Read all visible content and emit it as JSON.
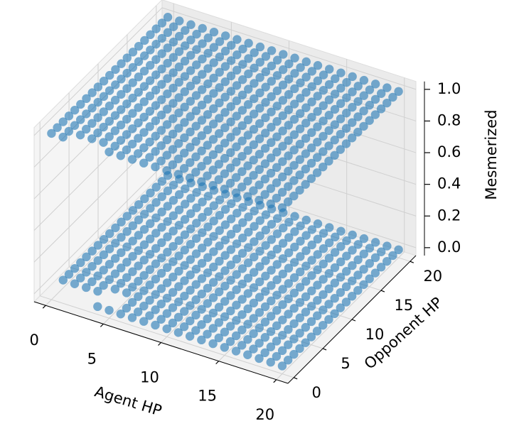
{
  "chart_data": {
    "type": "scatter3d",
    "xlabel": "Agent HP",
    "ylabel": "Opponent HP",
    "zlabel": "Mesmerized",
    "xlim": [
      -1,
      21
    ],
    "ylim": [
      -1,
      21
    ],
    "zlim": [
      -0.05,
      1.05
    ],
    "xticks": [
      0,
      5,
      10,
      15,
      20
    ],
    "yticks": [
      0,
      5,
      10,
      15,
      20
    ],
    "zticks": [
      {
        "value": 0,
        "label": "0.0"
      },
      0.2,
      0.4,
      0.6,
      0.8,
      {
        "value": 1,
        "label": "1.0"
      }
    ],
    "grid": true,
    "color": "#1f77b4",
    "x": [
      0,
      1,
      2,
      3,
      4,
      5,
      6,
      7,
      8,
      9,
      10,
      11,
      12,
      13,
      14,
      15,
      16,
      17,
      18,
      19,
      20
    ],
    "y": [
      0,
      1,
      2,
      3,
      4,
      5,
      6,
      7,
      8,
      9,
      10,
      11,
      12,
      13,
      14,
      15,
      16,
      17,
      18,
      19,
      20
    ],
    "layers": [
      {
        "z": [
          [
            null,
            null,
            null,
            null,
            0,
            0,
            0,
            0,
            0,
            0,
            0,
            0,
            0,
            0,
            0,
            0,
            0,
            0,
            0,
            0,
            0
          ],
          [
            null,
            null,
            null,
            null,
            null,
            null,
            0,
            0,
            0,
            0,
            0,
            0,
            0,
            0,
            0,
            0,
            0,
            0,
            0,
            0,
            0
          ],
          [
            0,
            0,
            0,
            0,
            null,
            null,
            0,
            0,
            0,
            0,
            0,
            0,
            0,
            0,
            0,
            0,
            0,
            0,
            0,
            0,
            0
          ],
          [
            0,
            0,
            0,
            0,
            0,
            0,
            0,
            0,
            0,
            0,
            0,
            0,
            0,
            0,
            0,
            0,
            0,
            0,
            0,
            0,
            0
          ],
          [
            0,
            0,
            0,
            0,
            0,
            0,
            0,
            0,
            0,
            0,
            0,
            0,
            0,
            0,
            0,
            0,
            0,
            0,
            0,
            0,
            0
          ],
          [
            0,
            0,
            0,
            0,
            0,
            0,
            0,
            0,
            0,
            0,
            0,
            0,
            0,
            0,
            0,
            0,
            0,
            0,
            0,
            0,
            0
          ],
          [
            0,
            0,
            0,
            0,
            0,
            0,
            0,
            0,
            0,
            0,
            0,
            0,
            0,
            0,
            0,
            0,
            0,
            0,
            0,
            0,
            0
          ],
          [
            0,
            0,
            0,
            0,
            0,
            0,
            0,
            0,
            0,
            0,
            0,
            0,
            0,
            0,
            0,
            0,
            0,
            0,
            0,
            0,
            0
          ],
          [
            0,
            0,
            0,
            0,
            0,
            0,
            0,
            0,
            0,
            0,
            0,
            0,
            0,
            0,
            0,
            0,
            0,
            0,
            0,
            0,
            0
          ],
          [
            0,
            0,
            0,
            0,
            0,
            0,
            0,
            0,
            0,
            0,
            0,
            0,
            0,
            0,
            0,
            0,
            0,
            0,
            0,
            0,
            0
          ],
          [
            0,
            0,
            0,
            0,
            0,
            0,
            0,
            0,
            0,
            0,
            0,
            0,
            0,
            0,
            0,
            0,
            0,
            0,
            0,
            0,
            0
          ],
          [
            0,
            0,
            0,
            0,
            0,
            0,
            0,
            0,
            0,
            0,
            0,
            0,
            0,
            0,
            0,
            0,
            0,
            0,
            0,
            0,
            0
          ],
          [
            0,
            0,
            0,
            0,
            0,
            0,
            0,
            0,
            0,
            0,
            0,
            0,
            0,
            0,
            0,
            0,
            0,
            0,
            0,
            0,
            0
          ],
          [
            0,
            0,
            0,
            0,
            0,
            0,
            0,
            0,
            0,
            0,
            0,
            0,
            0,
            0,
            0,
            0,
            0,
            0,
            0,
            0,
            0
          ],
          [
            0,
            0,
            0,
            0,
            0,
            0,
            0,
            0,
            0,
            0,
            0,
            0,
            0,
            0,
            0,
            0,
            0,
            0,
            0,
            0,
            0
          ],
          [
            0,
            0,
            0,
            0,
            0,
            0,
            0,
            0,
            0,
            0,
            0,
            0,
            0,
            0,
            0,
            0,
            0,
            0,
            0,
            0,
            0
          ],
          [
            0,
            0,
            0,
            0,
            0,
            0,
            0,
            0,
            0,
            0,
            0,
            0,
            0,
            0,
            0,
            0,
            0,
            0,
            0,
            0,
            0
          ],
          [
            0,
            0,
            0,
            0,
            0,
            0,
            0,
            0,
            0,
            0,
            0,
            0,
            0,
            0,
            0,
            0,
            0,
            0,
            0,
            0,
            0
          ],
          [
            0,
            0,
            0,
            0,
            0,
            0,
            0,
            0,
            0,
            0,
            0,
            0,
            0,
            0,
            0,
            0,
            0,
            0,
            0,
            0,
            0
          ],
          [
            0,
            0,
            0,
            0,
            0,
            0,
            0,
            0,
            0,
            0,
            0,
            0,
            0,
            0,
            0,
            0,
            0,
            0,
            0,
            0,
            0
          ],
          [
            0,
            0,
            0,
            0,
            0,
            0,
            0,
            0,
            0,
            0,
            0,
            0,
            0,
            0,
            0,
            0,
            0,
            0,
            0,
            0,
            0
          ]
        ]
      },
      {
        "z": [
          [
            1,
            1,
            null,
            null,
            null,
            1,
            1,
            1,
            1,
            1,
            1,
            1,
            1,
            1,
            1,
            1,
            1,
            1,
            1,
            1,
            1
          ],
          [
            1,
            1,
            1,
            1,
            1,
            1,
            1,
            1,
            1,
            1,
            1,
            1,
            1,
            1,
            1,
            1,
            1,
            1,
            1,
            1,
            1
          ],
          [
            1,
            1,
            1,
            1,
            1,
            1,
            1,
            1,
            1,
            1,
            1,
            1,
            1,
            1,
            1,
            1,
            1,
            1,
            1,
            1,
            1
          ],
          [
            1,
            1,
            1,
            1,
            1,
            1,
            1,
            1,
            1,
            1,
            1,
            1,
            1,
            1,
            1,
            1,
            1,
            1,
            1,
            1,
            1
          ],
          [
            1,
            1,
            1,
            1,
            1,
            1,
            1,
            1,
            1,
            1,
            1,
            1,
            1,
            1,
            1,
            1,
            1,
            1,
            1,
            1,
            1
          ],
          [
            1,
            1,
            1,
            1,
            1,
            1,
            1,
            1,
            1,
            1,
            1,
            1,
            1,
            1,
            1,
            1,
            1,
            1,
            1,
            1,
            1
          ],
          [
            1,
            1,
            1,
            1,
            1,
            1,
            1,
            1,
            1,
            1,
            1,
            1,
            1,
            1,
            1,
            1,
            1,
            1,
            1,
            1,
            1
          ],
          [
            1,
            1,
            1,
            1,
            1,
            1,
            1,
            1,
            1,
            1,
            1,
            1,
            1,
            1,
            1,
            1,
            1,
            1,
            1,
            1,
            1
          ],
          [
            1,
            1,
            1,
            1,
            1,
            1,
            1,
            1,
            1,
            1,
            1,
            1,
            1,
            1,
            1,
            1,
            1,
            1,
            1,
            1,
            1
          ],
          [
            1,
            1,
            1,
            1,
            1,
            1,
            1,
            1,
            1,
            1,
            1,
            1,
            1,
            1,
            1,
            1,
            1,
            1,
            1,
            1,
            1
          ],
          [
            1,
            1,
            1,
            1,
            1,
            1,
            1,
            1,
            1,
            1,
            1,
            1,
            1,
            1,
            1,
            1,
            1,
            1,
            1,
            1,
            1
          ],
          [
            1,
            1,
            1,
            1,
            1,
            1,
            1,
            1,
            1,
            1,
            1,
            1,
            1,
            1,
            1,
            1,
            1,
            1,
            1,
            1,
            1
          ],
          [
            1,
            1,
            1,
            1,
            1,
            1,
            1,
            1,
            1,
            1,
            1,
            1,
            1,
            1,
            1,
            1,
            1,
            1,
            1,
            1,
            1
          ],
          [
            1,
            1,
            1,
            1,
            1,
            1,
            1,
            1,
            1,
            1,
            1,
            1,
            1,
            1,
            1,
            1,
            1,
            1,
            1,
            1,
            1
          ],
          [
            1,
            1,
            1,
            1,
            1,
            1,
            1,
            1,
            1,
            1,
            1,
            1,
            1,
            1,
            1,
            1,
            1,
            1,
            1,
            1,
            1
          ],
          [
            1,
            1,
            1,
            1,
            1,
            1,
            1,
            1,
            1,
            1,
            1,
            1,
            1,
            1,
            1,
            1,
            1,
            1,
            1,
            1,
            1
          ],
          [
            1,
            1,
            1,
            1,
            1,
            1,
            1,
            1,
            1,
            1,
            1,
            1,
            1,
            1,
            1,
            1,
            1,
            1,
            1,
            1,
            1
          ],
          [
            1,
            1,
            1,
            1,
            1,
            1,
            1,
            1,
            1,
            1,
            1,
            1,
            1,
            1,
            1,
            1,
            1,
            1,
            1,
            1,
            1
          ],
          [
            1,
            1,
            1,
            1,
            1,
            1,
            1,
            1,
            1,
            1,
            1,
            1,
            1,
            1,
            1,
            1,
            1,
            1,
            1,
            1,
            1
          ],
          [
            1,
            1,
            1,
            1,
            1,
            1,
            1,
            1,
            1,
            1,
            1,
            1,
            1,
            1,
            1,
            1,
            1,
            1,
            1,
            1,
            1
          ],
          [
            1,
            1,
            1,
            1,
            1,
            1,
            1,
            1,
            1,
            1,
            1,
            1,
            1,
            1,
            1,
            1,
            1,
            1,
            1,
            1,
            1
          ]
        ]
      }
    ]
  }
}
